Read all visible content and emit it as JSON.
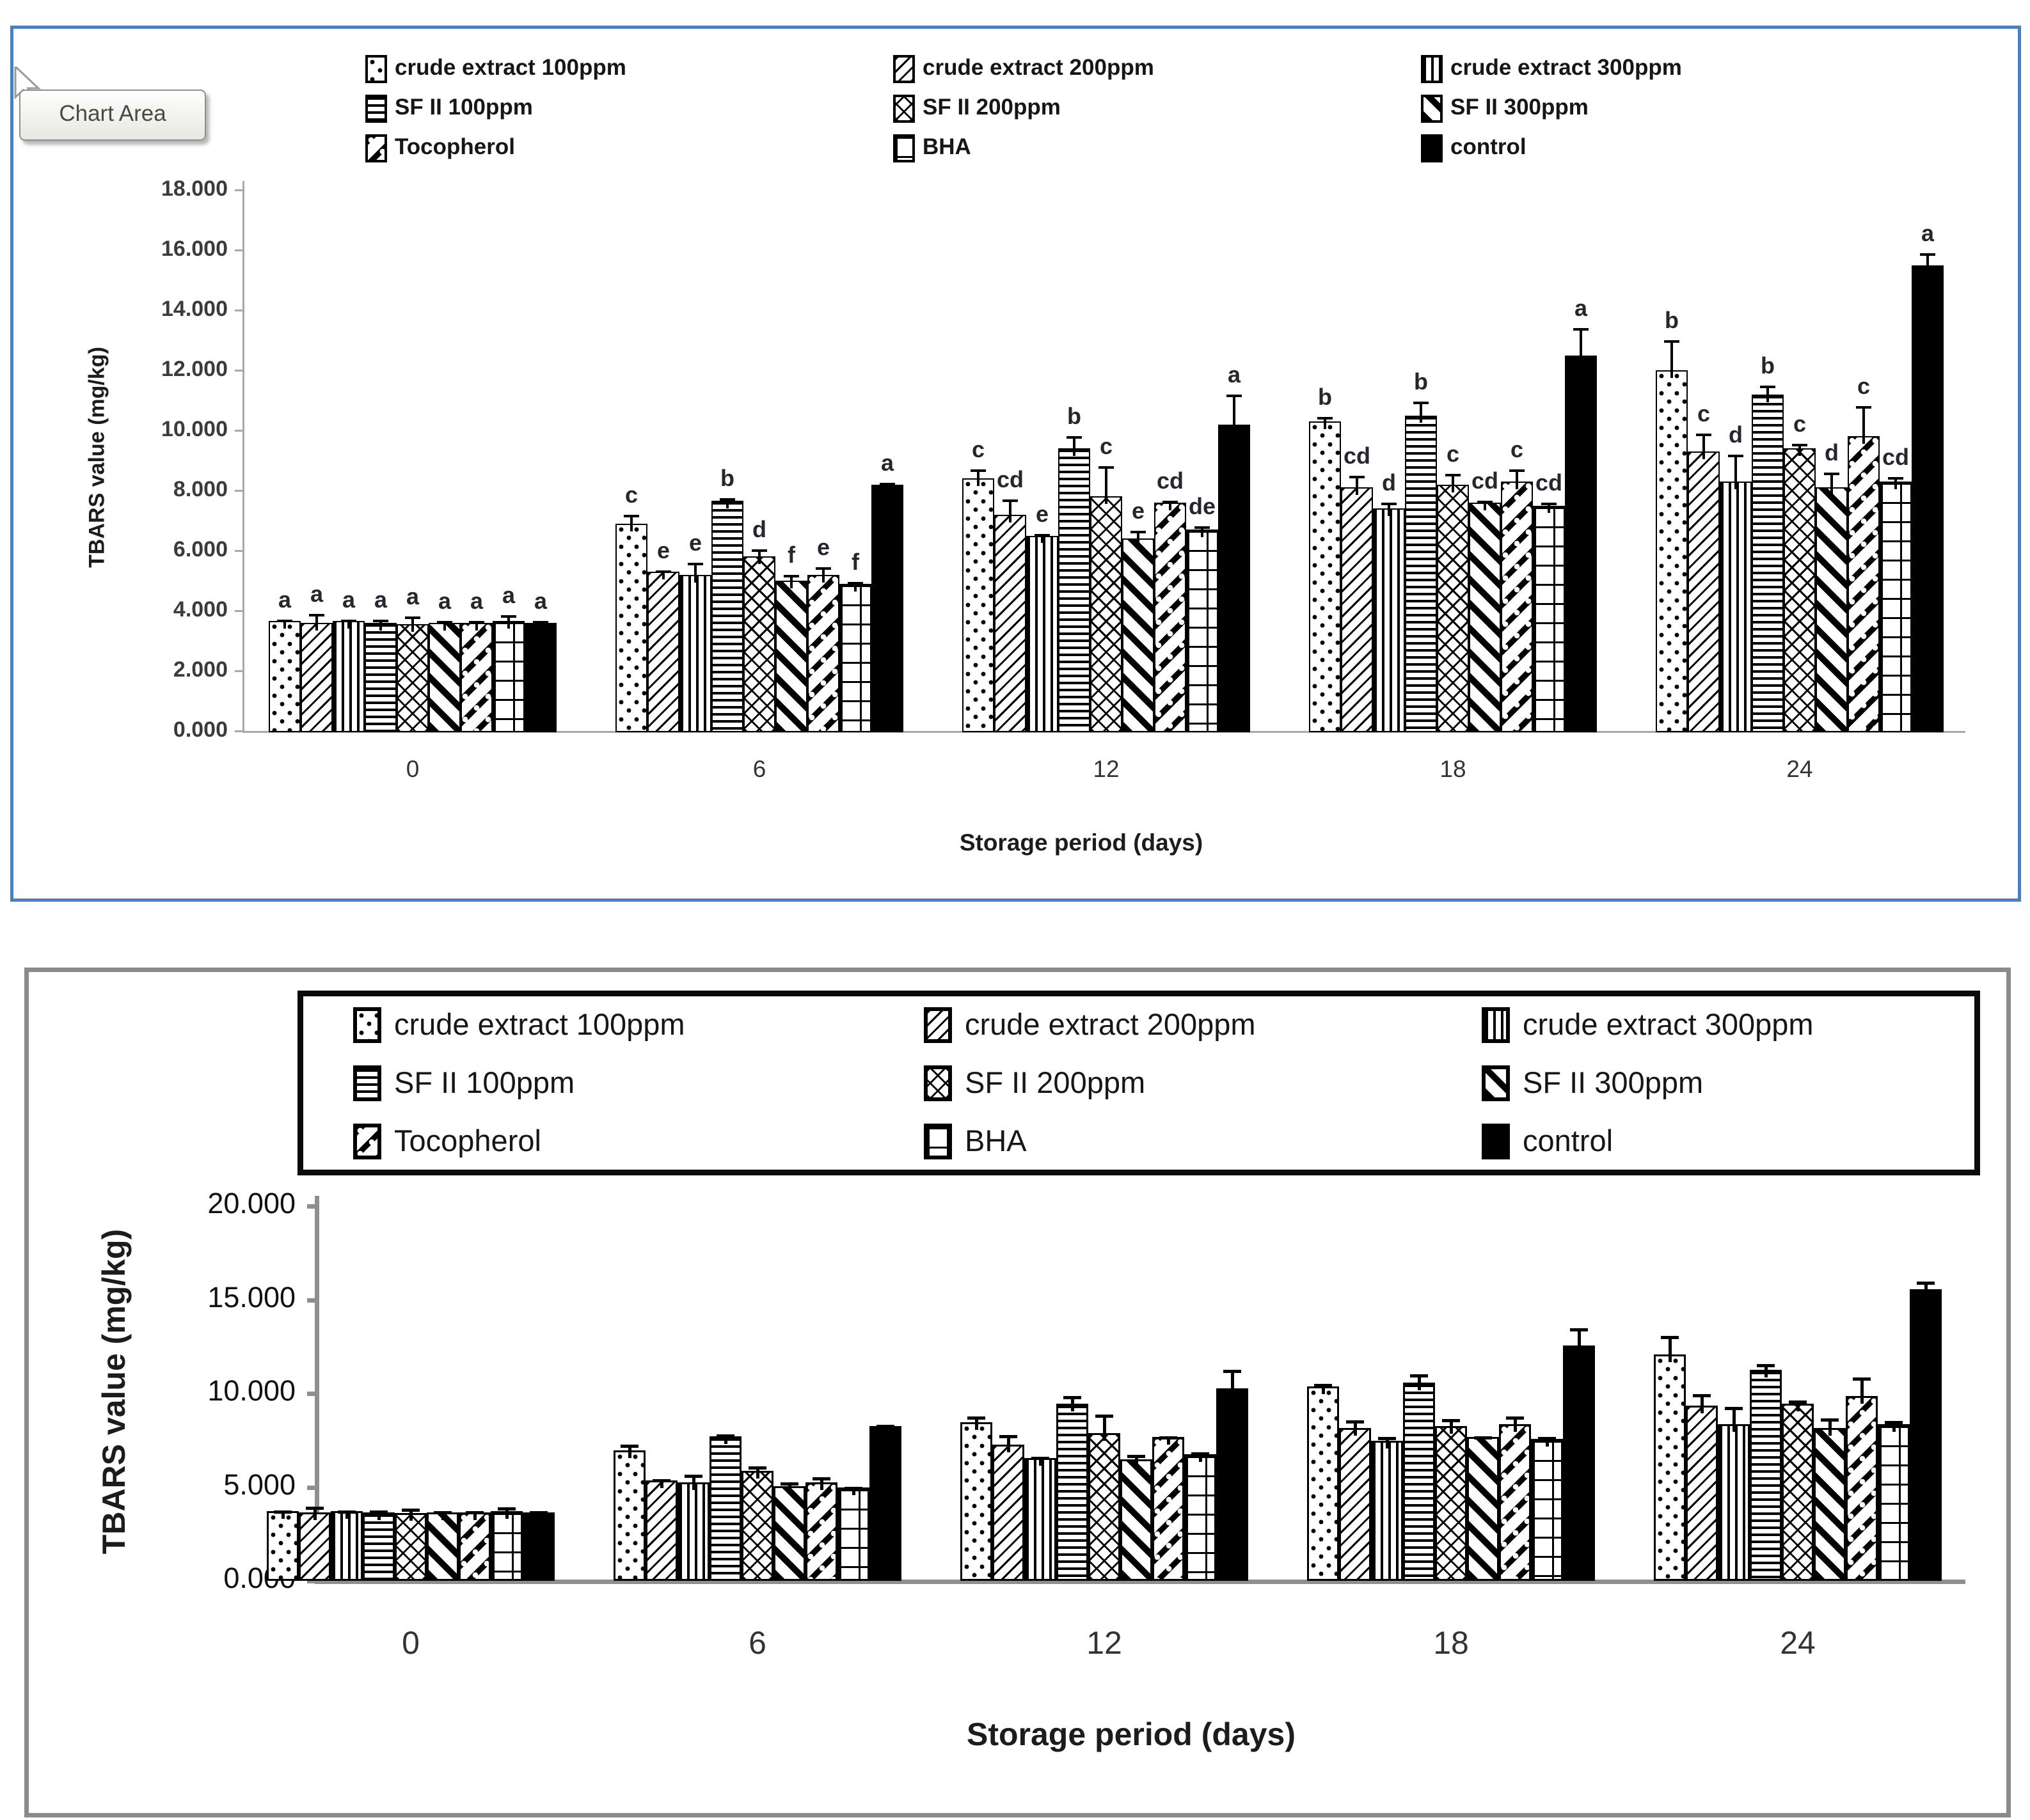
{
  "chart_data": [
    {
      "id": "top",
      "type": "bar",
      "tooltip": "Chart Area",
      "ylabel": "TBARS value (mg/kg)",
      "xlabel": "Storage period (days)",
      "categories": [
        "0",
        "6",
        "12",
        "18",
        "24"
      ],
      "ylim": [
        0,
        18
      ],
      "yticks": [
        "0.000",
        "2.000",
        "4.000",
        "6.000",
        "8.000",
        "10.000",
        "12.000",
        "14.000",
        "16.000",
        "18.000"
      ],
      "grid": false,
      "legend_position": "top",
      "series": [
        {
          "name": "crude extract 100ppm",
          "pattern": "dots",
          "values": [
            3.65,
            6.9,
            8.4,
            10.3,
            12.0
          ],
          "errors": [
            0.05,
            0.3,
            0.3,
            0.15,
            1.0
          ]
        },
        {
          "name": "crude extract 200ppm",
          "pattern": "diag-thin",
          "values": [
            3.6,
            5.3,
            7.2,
            8.1,
            9.3
          ],
          "errors": [
            0.3,
            0.05,
            0.5,
            0.4,
            0.6
          ]
        },
        {
          "name": "crude extract 300ppm",
          "pattern": "vlines",
          "values": [
            3.65,
            5.2,
            6.5,
            7.4,
            8.3
          ],
          "errors": [
            0.05,
            0.4,
            0.05,
            0.2,
            0.9
          ]
        },
        {
          "name": "SF II 100ppm",
          "pattern": "hlines",
          "values": [
            3.6,
            7.65,
            9.4,
            10.5,
            11.2
          ],
          "errors": [
            0.1,
            0.1,
            0.4,
            0.45,
            0.3
          ]
        },
        {
          "name": "SF II 200ppm",
          "pattern": "diamond",
          "values": [
            3.55,
            5.8,
            7.8,
            8.2,
            9.4
          ],
          "errors": [
            0.25,
            0.25,
            1.0,
            0.35,
            0.15
          ]
        },
        {
          "name": "SF II 300ppm",
          "pattern": "diag-thick",
          "values": [
            3.6,
            5.0,
            6.4,
            7.6,
            8.1
          ],
          "errors": [
            0.05,
            0.2,
            0.25,
            0.05,
            0.5
          ]
        },
        {
          "name": "Tocopherol",
          "pattern": "diag-dot",
          "values": [
            3.6,
            5.2,
            7.6,
            8.3,
            9.8
          ],
          "errors": [
            0.05,
            0.25,
            0.05,
            0.4,
            1.0
          ]
        },
        {
          "name": "BHA",
          "pattern": "grid",
          "values": [
            3.65,
            4.9,
            6.7,
            7.5,
            8.3
          ],
          "errors": [
            0.2,
            0.05,
            0.1,
            0.1,
            0.15
          ]
        },
        {
          "name": "control",
          "pattern": "solid",
          "values": [
            3.6,
            8.2,
            10.2,
            12.5,
            15.5
          ],
          "errors": [
            0.05,
            0.05,
            1.0,
            0.9,
            0.4
          ]
        }
      ],
      "sig_letters": [
        [
          "a",
          "a",
          "a",
          "a",
          "a",
          "a",
          "a",
          "a",
          "a"
        ],
        [
          "c",
          "e",
          "e",
          "b",
          "d",
          "f",
          "e",
          "f",
          "a"
        ],
        [
          "c",
          "cd",
          "e",
          "b",
          "c",
          "e",
          "cd",
          "de",
          "a"
        ],
        [
          "b",
          "cd",
          "d",
          "b",
          "c",
          "cd",
          "c",
          "cd",
          "a"
        ],
        [
          "b",
          "c",
          "d",
          "b",
          "c",
          "d",
          "c",
          "cd",
          "a"
        ]
      ]
    },
    {
      "id": "bottom",
      "type": "bar",
      "ylabel": "TBARS value (mg/kg)",
      "xlabel": "Storage period (days)",
      "categories": [
        "0",
        "6",
        "12",
        "18",
        "24"
      ],
      "ylim": [
        0,
        20
      ],
      "yticks": [
        "0.000",
        "5.000",
        "10.000",
        "15.000",
        "20.000"
      ],
      "grid": false,
      "legend_position": "top-boxed",
      "series": [
        {
          "name": "crude extract 100ppm",
          "pattern": "dots",
          "values": [
            3.65,
            6.9,
            8.4,
            10.3,
            12.0
          ],
          "errors": [
            0.05,
            0.3,
            0.3,
            0.15,
            1.0
          ]
        },
        {
          "name": "crude extract 200ppm",
          "pattern": "diag-thin",
          "values": [
            3.6,
            5.3,
            7.2,
            8.1,
            9.3
          ],
          "errors": [
            0.3,
            0.05,
            0.5,
            0.4,
            0.6
          ]
        },
        {
          "name": "crude extract 300ppm",
          "pattern": "vlines",
          "values": [
            3.65,
            5.2,
            6.5,
            7.4,
            8.3
          ],
          "errors": [
            0.05,
            0.4,
            0.05,
            0.2,
            0.9
          ]
        },
        {
          "name": "SF II 100ppm",
          "pattern": "hlines",
          "values": [
            3.6,
            7.65,
            9.4,
            10.5,
            11.2
          ],
          "errors": [
            0.1,
            0.1,
            0.4,
            0.45,
            0.3
          ]
        },
        {
          "name": "SF II 200ppm",
          "pattern": "diamond",
          "values": [
            3.55,
            5.8,
            7.8,
            8.2,
            9.4
          ],
          "errors": [
            0.25,
            0.25,
            1.0,
            0.35,
            0.15
          ]
        },
        {
          "name": "SF II 300ppm",
          "pattern": "diag-thick",
          "values": [
            3.6,
            5.0,
            6.4,
            7.6,
            8.1
          ],
          "errors": [
            0.05,
            0.2,
            0.25,
            0.05,
            0.5
          ]
        },
        {
          "name": "Tocopherol",
          "pattern": "diag-dot",
          "values": [
            3.6,
            5.2,
            7.6,
            8.3,
            9.8
          ],
          "errors": [
            0.05,
            0.25,
            0.05,
            0.4,
            1.0
          ]
        },
        {
          "name": "BHA",
          "pattern": "grid",
          "values": [
            3.65,
            4.9,
            6.7,
            7.5,
            8.3
          ],
          "errors": [
            0.2,
            0.05,
            0.1,
            0.1,
            0.15
          ]
        },
        {
          "name": "control",
          "pattern": "solid",
          "values": [
            3.6,
            8.2,
            10.2,
            12.5,
            15.5
          ],
          "errors": [
            0.05,
            0.05,
            1.0,
            0.9,
            0.4
          ]
        }
      ]
    }
  ]
}
